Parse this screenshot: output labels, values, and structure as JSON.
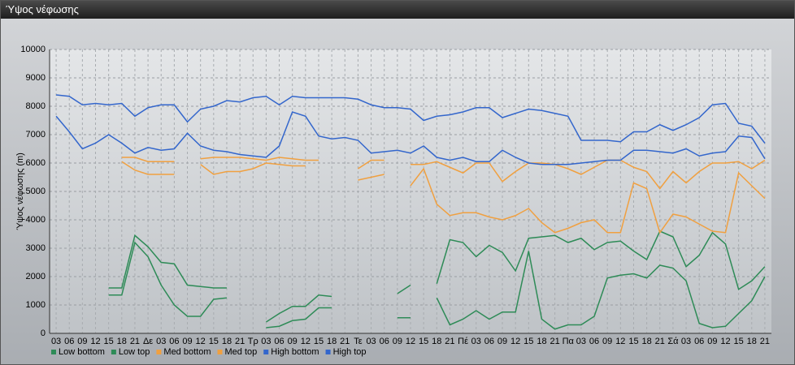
{
  "chart_data": {
    "type": "line",
    "title": "Ύψος νέφωσης",
    "ylabel": "Ύψος νέφωσης (m)",
    "categories": [
      "03",
      "06",
      "09",
      "12",
      "15",
      "18",
      "21",
      "Δε",
      "03",
      "06",
      "09",
      "12",
      "15",
      "18",
      "21",
      "Τρ",
      "03",
      "06",
      "09",
      "12",
      "15",
      "18",
      "21",
      "Τε",
      "03",
      "06",
      "09",
      "12",
      "15",
      "18",
      "21",
      "Πέ",
      "03",
      "06",
      "09",
      "12",
      "15",
      "18",
      "21",
      "Πα",
      "03",
      "06",
      "09",
      "12",
      "15",
      "18",
      "21",
      "Σά",
      "03",
      "06",
      "09",
      "12",
      "15",
      "18",
      "21"
    ],
    "ylim": [
      0,
      10000
    ],
    "yticks": [
      0,
      1000,
      2000,
      3000,
      4000,
      5000,
      6000,
      7000,
      8000,
      9000,
      10000
    ],
    "grid": true,
    "legend": "bottom-left",
    "series": [
      {
        "name": "Low bottom",
        "color": "#2e8b57",
        "values": [
          null,
          null,
          null,
          null,
          1350,
          1350,
          3200,
          2700,
          1700,
          1000,
          600,
          600,
          1200,
          1250,
          null,
          null,
          200,
          250,
          450,
          500,
          900,
          900,
          null,
          null,
          null,
          null,
          550,
          550,
          null,
          1250,
          300,
          500,
          800,
          500,
          750,
          750,
          2900,
          500,
          150,
          300,
          300,
          600,
          1950,
          2050,
          2100,
          1950,
          2400,
          2300,
          1850,
          350,
          200,
          250,
          700,
          1150,
          2000
        ]
      },
      {
        "name": "Low top",
        "color": "#2e8b57",
        "values": [
          null,
          null,
          null,
          null,
          1600,
          1600,
          3450,
          3050,
          2500,
          2450,
          1700,
          1650,
          1600,
          1600,
          null,
          null,
          400,
          700,
          950,
          950,
          1350,
          1300,
          null,
          null,
          null,
          null,
          1400,
          1700,
          null,
          1750,
          3300,
          3200,
          2700,
          3100,
          2850,
          2200,
          3350,
          3400,
          3450,
          3200,
          3350,
          2950,
          3200,
          3250,
          2900,
          2600,
          3600,
          3400,
          2350,
          2750,
          3550,
          3150,
          1550,
          1850,
          2350
        ]
      },
      {
        "name": "Med bottom",
        "color": "#f0a040",
        "values": [
          null,
          null,
          null,
          null,
          null,
          6050,
          5750,
          5600,
          5600,
          5600,
          null,
          5950,
          5600,
          5700,
          5700,
          5800,
          6000,
          5950,
          5900,
          5900,
          null,
          null,
          null,
          5400,
          5500,
          5600,
          null,
          5200,
          5800,
          4550,
          4150,
          4250,
          4250,
          4100,
          4000,
          4150,
          4400,
          3900,
          3550,
          3700,
          3900,
          4000,
          3550,
          3550,
          5300,
          5100,
          3550,
          4200,
          4100,
          3850,
          3600,
          3550,
          5650,
          5200,
          4750
        ]
      },
      {
        "name": "Med top",
        "color": "#f0a040",
        "values": [
          null,
          null,
          null,
          null,
          null,
          6200,
          6200,
          6050,
          6050,
          6050,
          null,
          6150,
          6200,
          6200,
          6200,
          6150,
          6100,
          6200,
          6150,
          6100,
          6100,
          null,
          null,
          5800,
          6100,
          6100,
          null,
          5950,
          5950,
          6050,
          5850,
          5650,
          6000,
          6000,
          5350,
          5700,
          6000,
          6000,
          5950,
          5800,
          5600,
          5850,
          6100,
          6100,
          5850,
          5700,
          5100,
          5700,
          5300,
          5700,
          6000,
          6000,
          6050,
          5800,
          6100
        ]
      },
      {
        "name": "High bottom",
        "color": "#3366cc",
        "values": [
          7650,
          7100,
          6500,
          6700,
          7000,
          6700,
          6350,
          6550,
          6450,
          6500,
          7050,
          6600,
          6450,
          6400,
          6300,
          6250,
          6200,
          6600,
          7800,
          7650,
          6950,
          6850,
          6900,
          6800,
          6350,
          6400,
          6450,
          6350,
          6600,
          6200,
          6100,
          6200,
          6050,
          6050,
          6450,
          6200,
          6000,
          5950,
          5950,
          5950,
          6000,
          6050,
          6100,
          6100,
          6450,
          6450,
          6400,
          6350,
          6500,
          6250,
          6350,
          6400,
          6950,
          6900,
          6150
        ]
      },
      {
        "name": "High top",
        "color": "#3366cc",
        "values": [
          8400,
          8350,
          8050,
          8100,
          8050,
          8100,
          7650,
          7950,
          8050,
          8050,
          7450,
          7900,
          8000,
          8200,
          8150,
          8300,
          8350,
          8050,
          8350,
          8300,
          8300,
          8300,
          8300,
          8250,
          8050,
          7950,
          7950,
          7900,
          7500,
          7650,
          7700,
          7800,
          7950,
          7950,
          7600,
          7750,
          7900,
          7850,
          7750,
          7650,
          6800,
          6800,
          6800,
          6750,
          7100,
          7100,
          7350,
          7150,
          7350,
          7600,
          8050,
          8100,
          7400,
          7300,
          6700
        ]
      }
    ]
  }
}
